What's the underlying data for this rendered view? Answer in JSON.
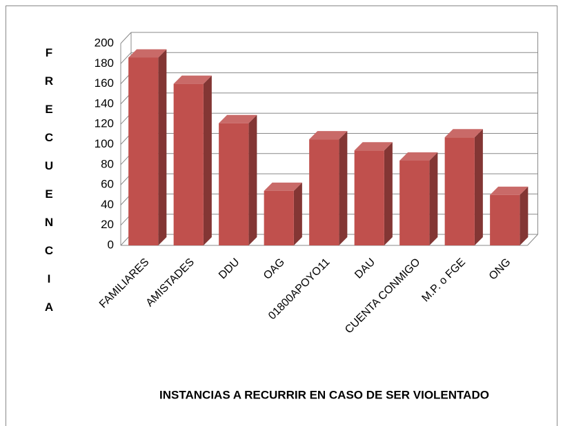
{
  "chart_data": {
    "type": "bar3d",
    "ylabel": "FRECUENCIA",
    "xlabel": "INSTANCIAS A RECURRIR EN CASO DE SER VIOLENTADO",
    "categories": [
      "FAMILIARES",
      "AMISTADES",
      "DDU",
      "OAG",
      "01800APOYO11",
      "DAU",
      "CUENTA CONMIGO",
      "M.P. o FGE",
      "ONG"
    ],
    "values": [
      186,
      160,
      121,
      54,
      105,
      94,
      84,
      107,
      50
    ],
    "color": "#c0504d",
    "ylim": [
      0,
      200
    ],
    "yticks": [
      0,
      20,
      40,
      60,
      80,
      100,
      120,
      140,
      160,
      180,
      200
    ],
    "grid": true
  }
}
